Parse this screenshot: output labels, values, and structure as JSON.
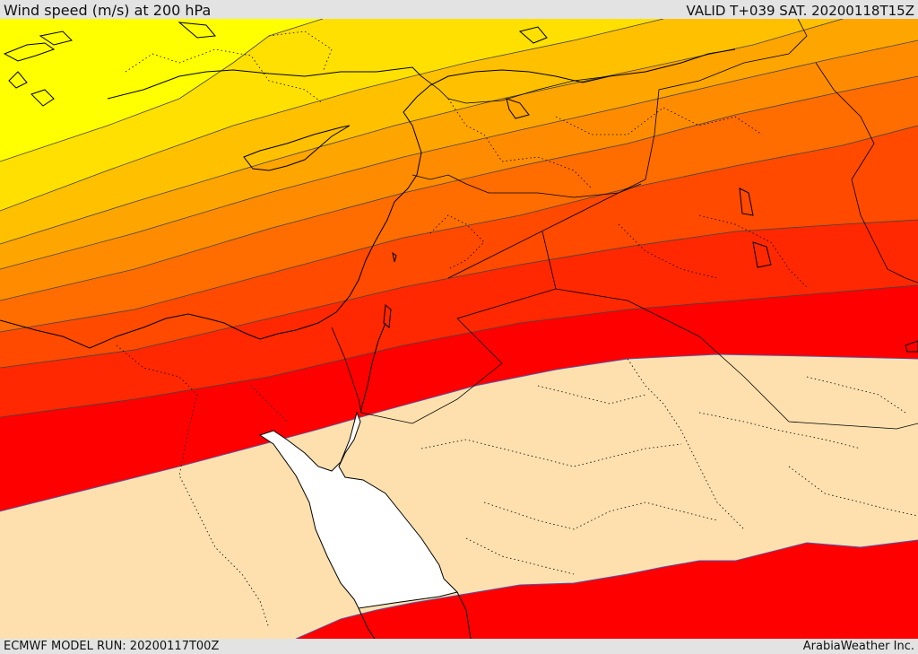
{
  "header": {
    "title": "Wind speed (m/s) at 200 hPa",
    "valid_time": "VALID T+039 SAT. 20200118T15Z"
  },
  "footer": {
    "model_run": "ECMWF MODEL RUN: 20200117T00Z",
    "credit": "ArabiaWeather Inc."
  },
  "map": {
    "variable": "Wind speed",
    "units": "m/s",
    "level": "200 hPa",
    "region": "Eastern Mediterranean and Middle East",
    "colors": {
      "calm": "#fde0ae",
      "band_1": "#ffff00",
      "band_2": "#ffe000",
      "band_3": "#ffc000",
      "band_4": "#ffa500",
      "band_5": "#ff8c00",
      "band_6": "#ff6c00",
      "band_7": "#ff4a00",
      "band_8": "#ff2800",
      "band_9": "#ff0000",
      "sea_cutout": "#ffffff",
      "contour_line": "#333333",
      "jet_edge": "#5555aa"
    }
  }
}
